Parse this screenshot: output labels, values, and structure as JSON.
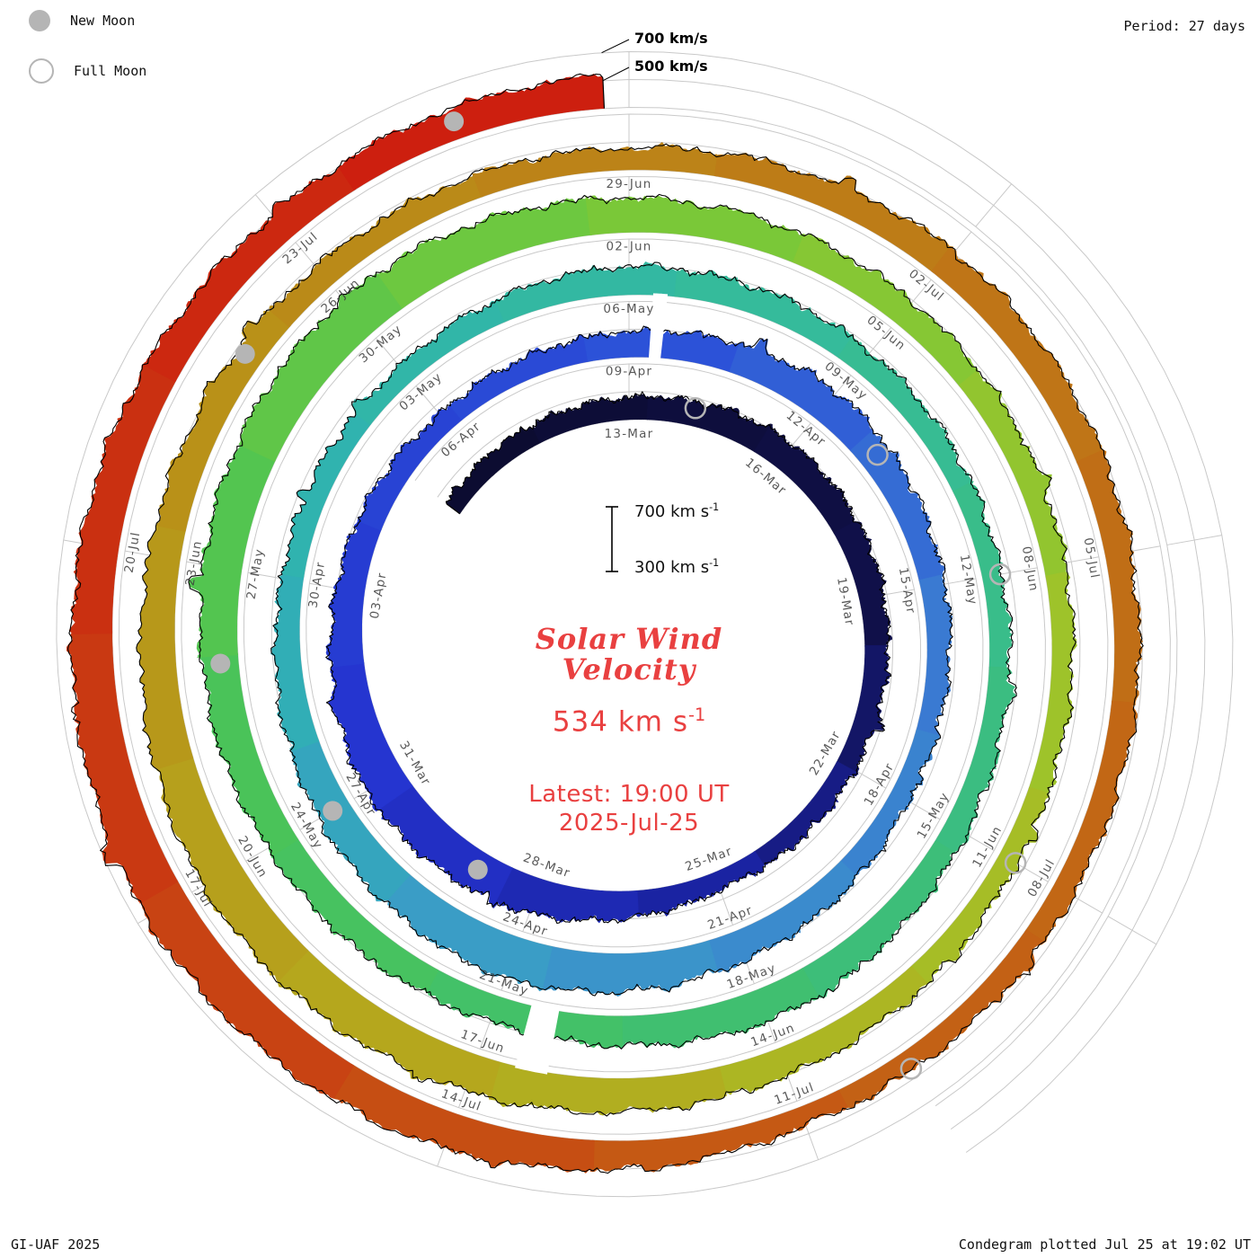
{
  "legend": {
    "new_moon_label": "New Moon",
    "full_moon_label": "Full Moon"
  },
  "period_label": "Period: 27 days",
  "footer": {
    "left": "GI-UAF 2025",
    "right": "Condegram plotted Jul 25 at 19:02 UT"
  },
  "center": {
    "title_line1": "Solar Wind",
    "title_line2": "Velocity",
    "value_text": "534 km s",
    "value_exp": "-1",
    "latest_line": "Latest: 19:00 UT",
    "date_line": "2025-Jul-25",
    "scale_top_text": "700 km s",
    "scale_top_exp": "-1",
    "scale_bottom_text": "300 km s",
    "scale_bottom_exp": "-1"
  },
  "chart_data": {
    "type": "area",
    "subtype": "condegram-spiral-polar",
    "title": "Solar Wind Velocity",
    "period_days": 27,
    "start_date": "2025-03-09",
    "end_datetime": "2025-07-25 19:00 UT",
    "latest_value_kms": 534,
    "day_at_top": 4,
    "days_total": 138.8,
    "velocity_baseline_kms": 300,
    "gridlines_kms": [
      300,
      500,
      700
    ],
    "velocity_end_labels": [
      {
        "text": "700 km/s",
        "kms": 700
      },
      {
        "text": "500 km/s",
        "kms": 500
      }
    ],
    "series": {
      "name": "solar wind velocity (km/s), estimated every ~3 days",
      "days": [
        0,
        4,
        7,
        10,
        13,
        16,
        19,
        22,
        25,
        28,
        31,
        34,
        37,
        40,
        43,
        46,
        49,
        52,
        55,
        58,
        61,
        64,
        67,
        70,
        73,
        76,
        79,
        82,
        85,
        88,
        91,
        94,
        97,
        100,
        103,
        106,
        109,
        112,
        115,
        118,
        121,
        124,
        127,
        130,
        133,
        136,
        138.8
      ],
      "values_kms": [
        420,
        460,
        505,
        480,
        440,
        425,
        560,
        600,
        505,
        435,
        480,
        545,
        470,
        435,
        520,
        610,
        540,
        455,
        435,
        505,
        470,
        435,
        465,
        540,
        485,
        515,
        580,
        620,
        545,
        490,
        455,
        435,
        505,
        570,
        610,
        525,
        470,
        455,
        515,
        485,
        455,
        435,
        560,
        630,
        575,
        505,
        534
      ]
    },
    "date_labels": [
      [
        "13-Mar",
        4
      ],
      [
        "16-Mar",
        7
      ],
      [
        "19-Mar",
        10
      ],
      [
        "22-Mar",
        13
      ],
      [
        "25-Mar",
        16
      ],
      [
        "28-Mar",
        19
      ],
      [
        "31-Mar",
        22
      ],
      [
        "03-Apr",
        25
      ],
      [
        "06-Apr",
        28
      ],
      [
        "09-Apr",
        31
      ],
      [
        "12-Apr",
        34
      ],
      [
        "15-Apr",
        37
      ],
      [
        "18-Apr",
        40
      ],
      [
        "21-Apr",
        43
      ],
      [
        "24-Apr",
        46
      ],
      [
        "27-Apr",
        49
      ],
      [
        "30-Apr",
        52
      ],
      [
        "03-May",
        55
      ],
      [
        "06-May",
        58
      ],
      [
        "09-May",
        61
      ],
      [
        "12-May",
        64
      ],
      [
        "15-May",
        67
      ],
      [
        "18-May",
        70
      ],
      [
        "21-May",
        73
      ],
      [
        "24-May",
        76
      ],
      [
        "27-May",
        79
      ],
      [
        "30-May",
        82
      ],
      [
        "02-Jun",
        85
      ],
      [
        "05-Jun",
        88
      ],
      [
        "08-Jun",
        91
      ],
      [
        "11-Jun",
        94
      ],
      [
        "14-Jun",
        97
      ],
      [
        "17-Jun",
        100
      ],
      [
        "20-Jun",
        103
      ],
      [
        "23-Jun",
        106
      ],
      [
        "26-Jun",
        109
      ],
      [
        "29-Jun",
        112
      ],
      [
        "02-Jul",
        115
      ],
      [
        "05-Jul",
        118
      ],
      [
        "08-Jul",
        121
      ],
      [
        "11-Jul",
        124
      ],
      [
        "14-Jul",
        127
      ],
      [
        "17-Jul",
        130
      ],
      [
        "20-Jul",
        133
      ],
      [
        "23-Jul",
        136
      ]
    ],
    "moons": {
      "new_dates": [
        "2025-03-29",
        "2025-04-27",
        "2025-05-26",
        "2025-06-25",
        "2025-07-24"
      ],
      "new_days": [
        20,
        49,
        78,
        108,
        137.6
      ],
      "full_dates": [
        "2025-03-14",
        "2025-04-13",
        "2025-05-12",
        "2025-06-11",
        "2025-07-10"
      ],
      "full_days": [
        5.2,
        35,
        64,
        94,
        123
      ]
    },
    "gaps_days": [
      [
        31.3,
        31.48
      ],
      [
        72.3,
        72.62
      ]
    ],
    "colormap": [
      [
        0,
        "#0b0b2e"
      ],
      [
        10,
        "#10104a"
      ],
      [
        16,
        "#1a22a0"
      ],
      [
        22,
        "#2433cf"
      ],
      [
        31,
        "#2b4fd8"
      ],
      [
        38,
        "#3a7ad2"
      ],
      [
        46,
        "#3b9ac8"
      ],
      [
        52,
        "#2fb2b2"
      ],
      [
        60,
        "#35bb9a"
      ],
      [
        70,
        "#3fbf72"
      ],
      [
        78,
        "#4cc455"
      ],
      [
        85,
        "#76c93a"
      ],
      [
        93,
        "#a3c228"
      ],
      [
        100,
        "#b4aa1e"
      ],
      [
        108,
        "#b98f18"
      ],
      [
        116,
        "#bf7517"
      ],
      [
        124,
        "#c45c14"
      ],
      [
        131,
        "#c93a12"
      ],
      [
        139,
        "#ce1a0e"
      ]
    ],
    "colors": {
      "grid": "#c9c9c9",
      "outline": "#000000",
      "moon": "#b5b5b5",
      "text_red": "#e94040",
      "label_gray": "#3c3c3c"
    }
  }
}
